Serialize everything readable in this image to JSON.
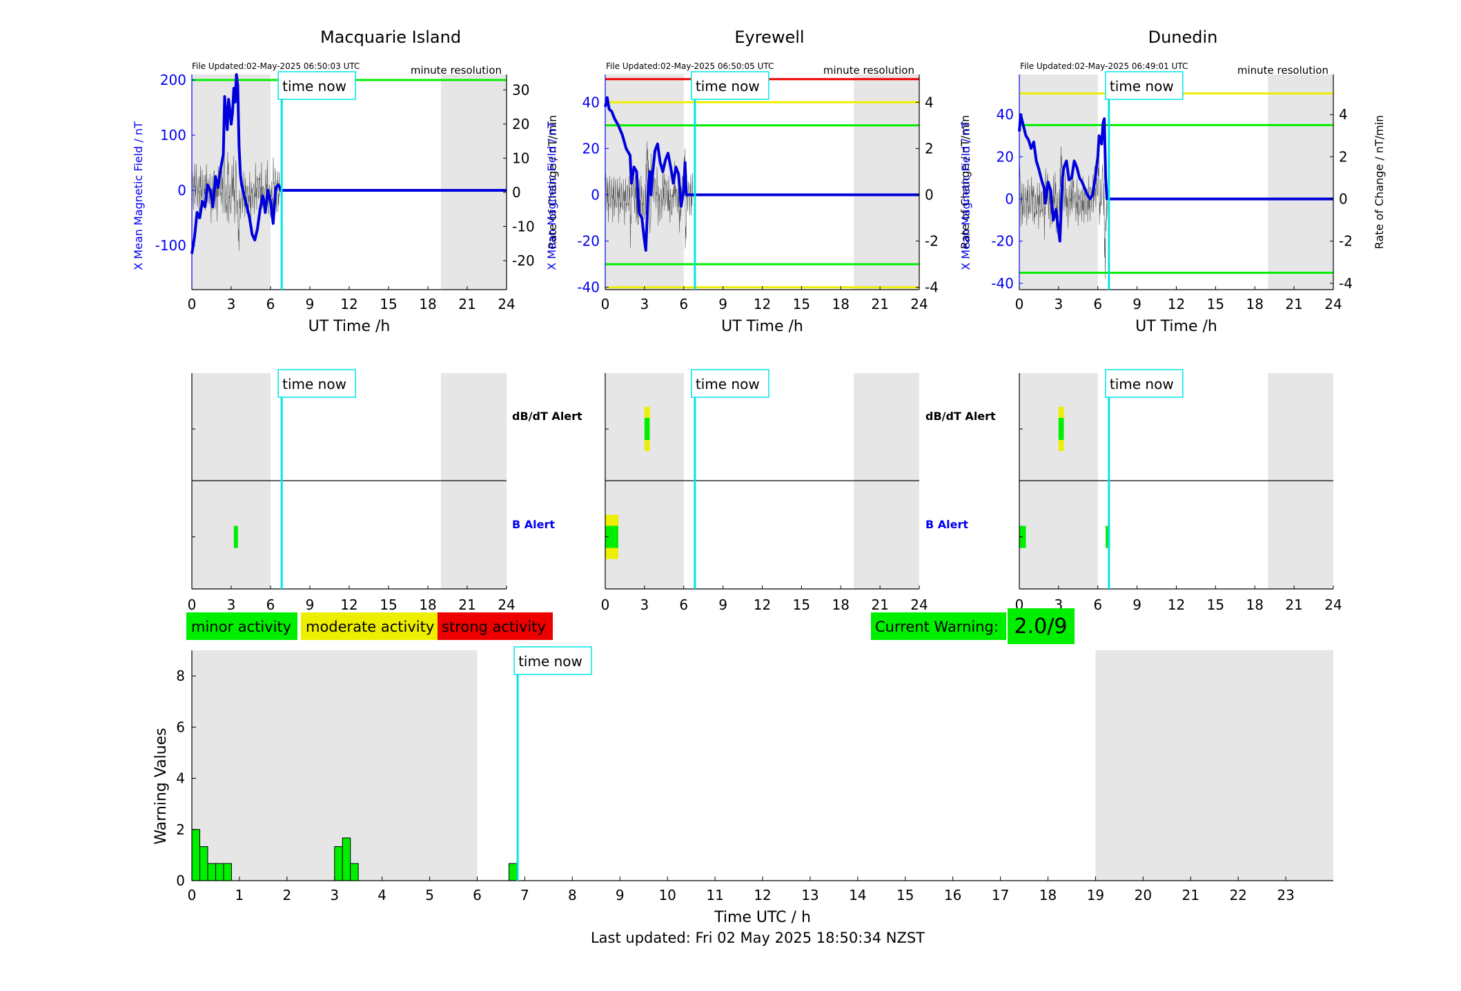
{
  "stations": [
    {
      "name": "Macquarie Island",
      "file_updated": "File Updated:02-May-2025 06:50:03 UTC",
      "resolution": "minute resolution",
      "field_ylabel": "X Mean Magnetic Field / nT",
      "rate_ylabel": "Rate of Change / nT/min",
      "field_ylim": [
        -180,
        210
      ],
      "field_ticks": [
        -100,
        0,
        100,
        200
      ],
      "rate_ylim": [
        -28.5,
        34.5
      ],
      "rate_ticks": [
        -20,
        -10,
        0,
        10,
        20,
        30
      ],
      "thresholds": [
        {
          "value": 200,
          "color": "#00ee00"
        }
      ],
      "field_trace": [
        [
          0,
          -115
        ],
        [
          0.2,
          -85
        ],
        [
          0.4,
          -40
        ],
        [
          0.6,
          -50
        ],
        [
          0.8,
          -20
        ],
        [
          1.0,
          -30
        ],
        [
          1.2,
          10
        ],
        [
          1.4,
          0
        ],
        [
          1.6,
          -30
        ],
        [
          1.8,
          25
        ],
        [
          2.0,
          5
        ],
        [
          2.2,
          40
        ],
        [
          2.4,
          65
        ],
        [
          2.5,
          170
        ],
        [
          2.6,
          140
        ],
        [
          2.7,
          110
        ],
        [
          2.8,
          165
        ],
        [
          2.9,
          145
        ],
        [
          3.0,
          120
        ],
        [
          3.1,
          140
        ],
        [
          3.2,
          185
        ],
        [
          3.3,
          160
        ],
        [
          3.4,
          210
        ],
        [
          3.5,
          190
        ],
        [
          3.6,
          80
        ],
        [
          3.7,
          30
        ],
        [
          3.8,
          10
        ],
        [
          4.0,
          -10
        ],
        [
          4.2,
          -30
        ],
        [
          4.4,
          -50
        ],
        [
          4.6,
          -80
        ],
        [
          4.8,
          -90
        ],
        [
          5.0,
          -70
        ],
        [
          5.2,
          -35
        ],
        [
          5.4,
          -10
        ],
        [
          5.5,
          -20
        ],
        [
          5.6,
          -40
        ],
        [
          5.8,
          0
        ],
        [
          6.0,
          -20
        ],
        [
          6.2,
          -60
        ],
        [
          6.4,
          5
        ],
        [
          6.6,
          10
        ],
        [
          6.8,
          0
        ],
        [
          24,
          0
        ]
      ],
      "alerts": {
        "dbdt": [],
        "b": [
          {
            "t0": 3.2,
            "t1": 3.5,
            "core": "#00ee00",
            "halo": null
          }
        ]
      }
    },
    {
      "name": "Eyrewell",
      "file_updated": "File Updated:02-May-2025 06:50:05 UTC",
      "resolution": "minute resolution",
      "field_ylabel": "X Mean Magnetic Field / nT",
      "rate_ylabel": "Rate of Change / nT/min",
      "field_ylim": [
        -41,
        52
      ],
      "field_ticks": [
        -40,
        -20,
        0,
        20,
        40
      ],
      "rate_ylim": [
        -4.1,
        5.2
      ],
      "rate_ticks": [
        -4,
        -2,
        0,
        2,
        4
      ],
      "thresholds": [
        {
          "value": 50,
          "color": "#ee0000"
        },
        {
          "value": 40,
          "color": "#eeee00"
        },
        {
          "value": 30,
          "color": "#00ee00"
        },
        {
          "value": -30,
          "color": "#00ee00"
        },
        {
          "value": -40,
          "color": "#eeee00"
        }
      ],
      "field_trace": [
        [
          0,
          38
        ],
        [
          0.15,
          42
        ],
        [
          0.3,
          37
        ],
        [
          0.5,
          36
        ],
        [
          0.7,
          33
        ],
        [
          1.0,
          30
        ],
        [
          1.3,
          26
        ],
        [
          1.6,
          20
        ],
        [
          1.9,
          17
        ],
        [
          2.0,
          5
        ],
        [
          2.2,
          12
        ],
        [
          2.4,
          10
        ],
        [
          2.5,
          0
        ],
        [
          2.6,
          -8
        ],
        [
          2.8,
          -10
        ],
        [
          3.0,
          -20
        ],
        [
          3.1,
          -24
        ],
        [
          3.2,
          -10
        ],
        [
          3.3,
          5
        ],
        [
          3.4,
          10
        ],
        [
          3.5,
          0
        ],
        [
          3.6,
          8
        ],
        [
          3.8,
          19
        ],
        [
          4.0,
          22
        ],
        [
          4.2,
          14
        ],
        [
          4.4,
          10
        ],
        [
          4.6,
          15
        ],
        [
          4.8,
          18
        ],
        [
          5.0,
          12
        ],
        [
          5.2,
          5
        ],
        [
          5.4,
          12
        ],
        [
          5.6,
          9
        ],
        [
          5.8,
          -5
        ],
        [
          6.0,
          2
        ],
        [
          6.1,
          14
        ],
        [
          6.2,
          0
        ],
        [
          24,
          0
        ]
      ],
      "alerts": {
        "dbdt": [
          {
            "t0": 3.0,
            "t1": 3.4,
            "core": "#00ee00",
            "halo": "#eeee00"
          }
        ],
        "b": [
          {
            "t0": 0.0,
            "t1": 1.0,
            "core": "#00ee00",
            "halo": "#eeee00"
          }
        ]
      }
    },
    {
      "name": "Dunedin",
      "file_updated": "File Updated:02-May-2025 06:49:01 UTC",
      "resolution": "minute resolution",
      "field_ylabel": "X Mean Magnetic Field / nT",
      "rate_ylabel": "Rate of Change / nT/min",
      "field_ylim": [
        -43,
        59
      ],
      "field_ticks": [
        -40,
        -20,
        0,
        20,
        40
      ],
      "rate_ylim": [
        -4.3,
        5.9
      ],
      "rate_ticks": [
        -4,
        -2,
        0,
        2,
        4
      ],
      "thresholds": [
        {
          "value": 50,
          "color": "#eeee00"
        },
        {
          "value": 35,
          "color": "#00ee00"
        },
        {
          "value": -35,
          "color": "#00ee00"
        }
      ],
      "field_trace": [
        [
          0,
          32
        ],
        [
          0.1,
          40
        ],
        [
          0.3,
          35
        ],
        [
          0.5,
          30
        ],
        [
          0.7,
          28
        ],
        [
          0.9,
          24
        ],
        [
          1.1,
          27
        ],
        [
          1.3,
          18
        ],
        [
          1.5,
          14
        ],
        [
          1.7,
          9
        ],
        [
          1.9,
          5
        ],
        [
          2.0,
          -2
        ],
        [
          2.2,
          8
        ],
        [
          2.4,
          4
        ],
        [
          2.6,
          -10
        ],
        [
          2.8,
          -5
        ],
        [
          3.0,
          -15
        ],
        [
          3.1,
          -20
        ],
        [
          3.2,
          -5
        ],
        [
          3.3,
          10
        ],
        [
          3.4,
          15
        ],
        [
          3.6,
          18
        ],
        [
          3.8,
          9
        ],
        [
          4.0,
          10
        ],
        [
          4.2,
          18
        ],
        [
          4.4,
          15
        ],
        [
          4.6,
          10
        ],
        [
          4.8,
          8
        ],
        [
          5.0,
          5
        ],
        [
          5.2,
          2
        ],
        [
          5.4,
          0
        ],
        [
          5.6,
          2
        ],
        [
          5.8,
          10
        ],
        [
          6.0,
          20
        ],
        [
          6.1,
          30
        ],
        [
          6.2,
          28
        ],
        [
          6.3,
          26
        ],
        [
          6.4,
          36
        ],
        [
          6.5,
          38
        ],
        [
          6.6,
          10
        ],
        [
          6.7,
          0
        ],
        [
          24,
          0
        ]
      ],
      "alerts": {
        "dbdt": [
          {
            "t0": 3.0,
            "t1": 3.4,
            "core": "#00ee00",
            "halo": "#eeee00"
          }
        ],
        "b": [
          {
            "t0": 0.0,
            "t1": 0.5,
            "core": "#00ee00",
            "halo": null
          },
          {
            "t0": 6.6,
            "t1": 6.9,
            "core": "#00ee00",
            "halo": null
          }
        ]
      }
    }
  ],
  "time_now_label": "time now",
  "time_now_hours": 6.85,
  "ut_xlabel": "UT Time /h",
  "ut_ticks": [
    0,
    3,
    6,
    9,
    12,
    15,
    18,
    21,
    24
  ],
  "night_shading": [
    [
      0,
      6
    ],
    [
      19,
      24
    ]
  ],
  "alert_labels": {
    "dbdt": "dB/dT Alert",
    "b": "B Alert"
  },
  "legend": {
    "minor": {
      "label": "minor activity",
      "color": "#00ee00"
    },
    "moderate": {
      "label": "moderate activity",
      "color": "#eeee00"
    },
    "strong": {
      "label": "strong activity",
      "color": "#ee0000"
    }
  },
  "current_warning": {
    "label": "Current Warning:",
    "value": "2.0/9",
    "color": "#00ee00"
  },
  "chart_data": [
    {
      "type": "bar",
      "title": "",
      "xlabel": "Time UTC / h",
      "ylabel": "Warning Values",
      "xlim": [
        0,
        24
      ],
      "ylim": [
        0,
        9
      ],
      "xticks": [
        0,
        1,
        2,
        3,
        4,
        5,
        6,
        7,
        8,
        9,
        10,
        11,
        12,
        13,
        14,
        15,
        16,
        17,
        18,
        19,
        20,
        21,
        22,
        23
      ],
      "yticks": [
        0,
        2,
        4,
        6,
        8
      ],
      "bar_width_hours": 0.1667,
      "x": [
        0.0,
        0.1667,
        0.3333,
        0.5,
        0.6667,
        3.0,
        3.1667,
        3.3333,
        6.6667
      ],
      "values": [
        2.0,
        1.33,
        0.67,
        0.67,
        0.67,
        1.33,
        1.67,
        0.67,
        0.67
      ],
      "color": "#00ee00",
      "shaded_hours": [
        [
          0,
          6
        ],
        [
          19,
          24
        ]
      ],
      "time_now_hours": 6.85
    }
  ],
  "footer": "Last updated: Fri 02 May 2025 18:50:34 NZST"
}
